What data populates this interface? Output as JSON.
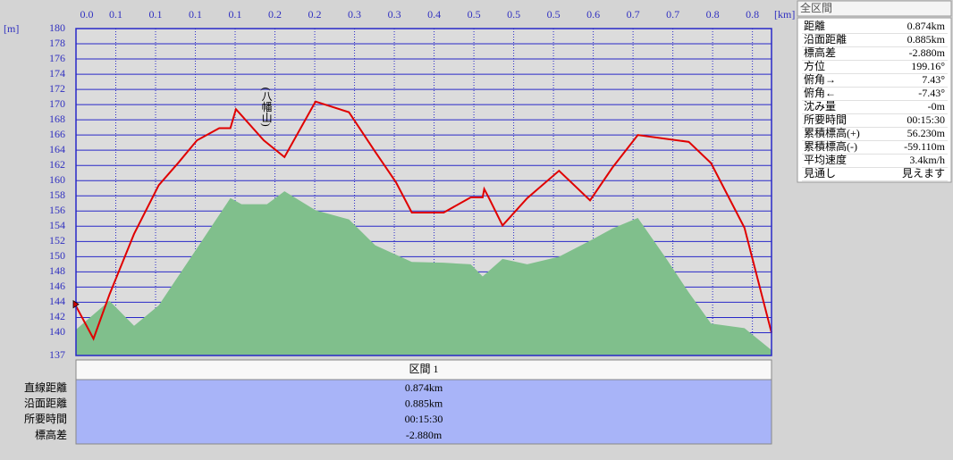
{
  "chart_data": {
    "type": "line",
    "x_label": "[km]",
    "y_label": "[m]",
    "xlim": [
      0,
      0.874
    ],
    "ylim": [
      137,
      180
    ],
    "xticks": [
      {
        "value": 0,
        "label": "0.0"
      },
      {
        "value": 0.05,
        "label": "0.1"
      },
      {
        "value": 0.1,
        "label": "0.1"
      },
      {
        "value": 0.15,
        "label": "0.1"
      },
      {
        "value": 0.2,
        "label": "0.1"
      },
      {
        "value": 0.25,
        "label": "0.2"
      },
      {
        "value": 0.3,
        "label": "0.2"
      },
      {
        "value": 0.35,
        "label": "0.3"
      },
      {
        "value": 0.4,
        "label": "0.3"
      },
      {
        "value": 0.45,
        "label": "0.4"
      },
      {
        "value": 0.5,
        "label": "0.5"
      },
      {
        "value": 0.55,
        "label": "0.5"
      },
      {
        "value": 0.6,
        "label": "0.5"
      },
      {
        "value": 0.65,
        "label": "0.6"
      },
      {
        "value": 0.7,
        "label": "0.7"
      },
      {
        "value": 0.75,
        "label": "0.7"
      },
      {
        "value": 0.8,
        "label": "0.8"
      },
      {
        "value": 0.85,
        "label": "0.8"
      }
    ],
    "yticks": [
      137,
      140,
      142,
      144,
      146,
      148,
      150,
      152,
      154,
      156,
      158,
      160,
      162,
      164,
      166,
      168,
      170,
      172,
      174,
      176,
      178,
      180
    ],
    "grid": true,
    "series": [
      {
        "style": "area",
        "color": "#80bf8c",
        "x": [
          0,
          0.042,
          0.073,
          0.104,
          0.152,
          0.194,
          0.208,
          0.24,
          0.262,
          0.301,
          0.343,
          0.376,
          0.422,
          0.462,
          0.496,
          0.511,
          0.536,
          0.567,
          0.607,
          0.646,
          0.674,
          0.706,
          0.742,
          0.77,
          0.798,
          0.84,
          0.874
        ],
        "values": [
          140.4,
          144.2,
          140.9,
          143.6,
          151.1,
          157.7,
          156.9,
          156.9,
          158.6,
          156.1,
          154.9,
          151.5,
          149.3,
          149.2,
          149.0,
          147.4,
          149.7,
          149.0,
          150.0,
          152.1,
          153.7,
          155.1,
          149.7,
          145.3,
          141.2,
          140.6,
          137.7
        ]
      },
      {
        "style": "line",
        "color": "#e00000",
        "x": [
          0,
          0.022,
          0.042,
          0.073,
          0.104,
          0.129,
          0.152,
          0.18,
          0.194,
          0.201,
          0.236,
          0.262,
          0.301,
          0.343,
          0.376,
          0.402,
          0.422,
          0.462,
          0.496,
          0.511,
          0.513,
          0.519,
          0.536,
          0.567,
          0.607,
          0.646,
          0.674,
          0.706,
          0.77,
          0.798,
          0.84,
          0.874
        ],
        "values": [
          143.5,
          139.2,
          145.0,
          153.0,
          159.4,
          162.4,
          165.3,
          166.9,
          166.9,
          169.4,
          165.3,
          163.1,
          170.4,
          169.0,
          163.8,
          159.8,
          155.8,
          155.8,
          157.8,
          157.8,
          158.9,
          157.7,
          154.1,
          157.7,
          161.3,
          157.4,
          161.7,
          166.0,
          165.1,
          162.3,
          153.8,
          140.0
        ]
      }
    ],
    "annotations": [
      {
        "text": "(八幡山)",
        "x": 0.238,
        "y": 169.7
      }
    ]
  },
  "section_table": {
    "header": "区間 1",
    "rows": [
      [
        "直線距離",
        "0.874km"
      ],
      [
        "沿面距離",
        "0.885km"
      ],
      [
        "所要時間",
        "00:15:30"
      ],
      [
        "標高差",
        "-2.880m"
      ]
    ]
  },
  "summary_panel": {
    "title": "全区間",
    "rows": [
      [
        "距離",
        "0.874km"
      ],
      [
        "沿面距離",
        "0.885km"
      ],
      [
        "標高差",
        "-2.880m"
      ],
      [
        "方位",
        "199.16°"
      ],
      [
        "俯角→",
        "7.43°"
      ],
      [
        "俯角←",
        "-7.43°"
      ],
      [
        "沈み量",
        "-0m"
      ],
      [
        "所要時間",
        "00:15:30"
      ],
      [
        "累積標高(+)",
        "56.230m"
      ],
      [
        "累積標高(-)",
        "-59.110m"
      ],
      [
        "平均速度",
        "3.4km/h"
      ],
      [
        "見通し",
        "見えます"
      ]
    ]
  }
}
